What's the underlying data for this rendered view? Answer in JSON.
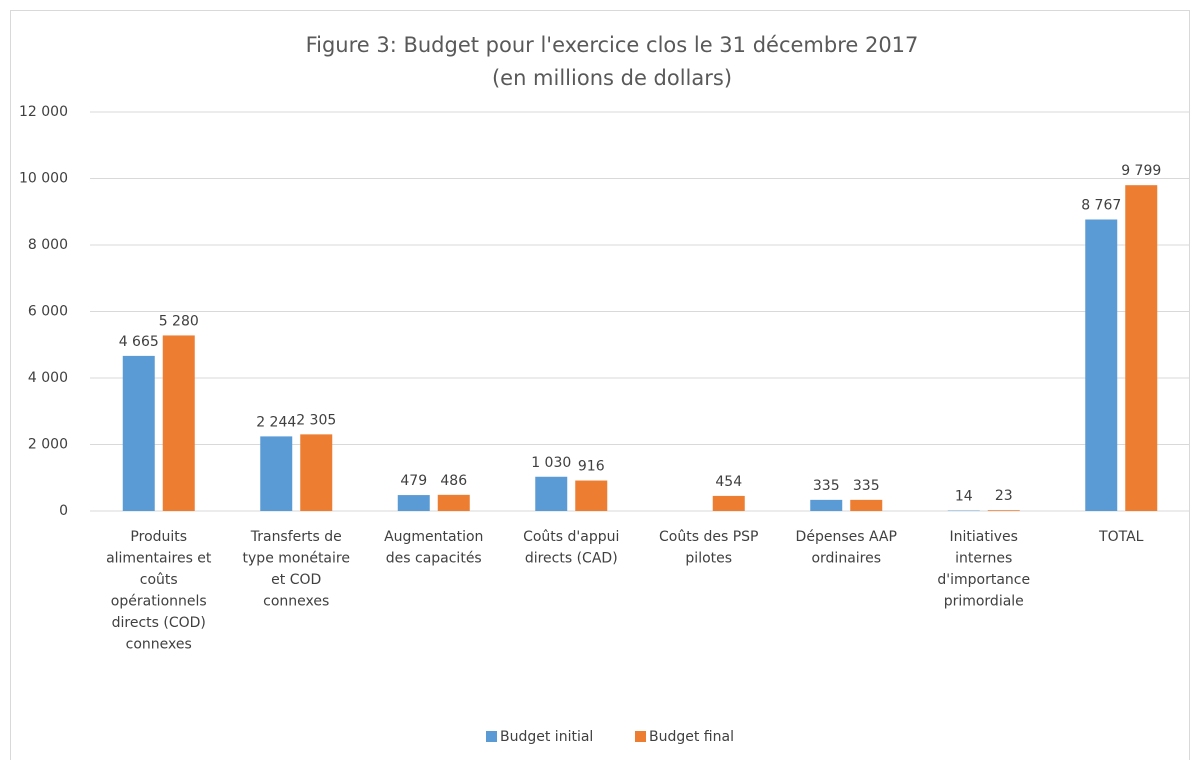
{
  "chart_data": {
    "type": "bar",
    "title": "Figure 3: Budget pour l'exercice clos le 31 décembre 2017",
    "subtitle": "(en millions de dollars)",
    "categories": [
      "Produits\nalimentaires et\ncoûts\nopérationnels\ndirects (COD)\nconnexes",
      "Transferts de\ntype monétaire\net COD\nconnexes",
      "Augmentation\ndes capacités",
      "Coûts d'appui\ndirects (CAD)",
      "Coûts des PSP\npilotes",
      "Dépenses AAP\nordinaires",
      "Initiatives\ninternes\nd'importance\nprimordiale",
      "TOTAL"
    ],
    "series": [
      {
        "name": "Budget initial",
        "color": "#5b9bd5",
        "values": [
          4665,
          2244,
          479,
          1030,
          null,
          335,
          14,
          8767
        ],
        "value_labels": [
          "4 665",
          "2 244",
          "479",
          "1 030",
          null,
          "335",
          "14",
          "8 767"
        ]
      },
      {
        "name": "Budget final",
        "color": "#ed7d31",
        "values": [
          5280,
          2305,
          486,
          916,
          454,
          335,
          23,
          9799
        ],
        "value_labels": [
          "5 280",
          "2 305",
          "486",
          "916",
          "454",
          "335",
          "23",
          "9 799"
        ]
      }
    ],
    "ylim": [
      0,
      12000
    ],
    "yticks": [
      0,
      {
        "value": 2000,
        "label": "2 000"
      },
      {
        "value": 4000,
        "label": "4 000"
      },
      {
        "value": 6000,
        "label": "6 000"
      },
      {
        "value": 8000,
        "label": "8 000"
      },
      {
        "value": 10000,
        "label": "10 000"
      },
      {
        "value": 12000,
        "label": "12 000"
      }
    ],
    "grid": true,
    "legend": "bottom"
  }
}
